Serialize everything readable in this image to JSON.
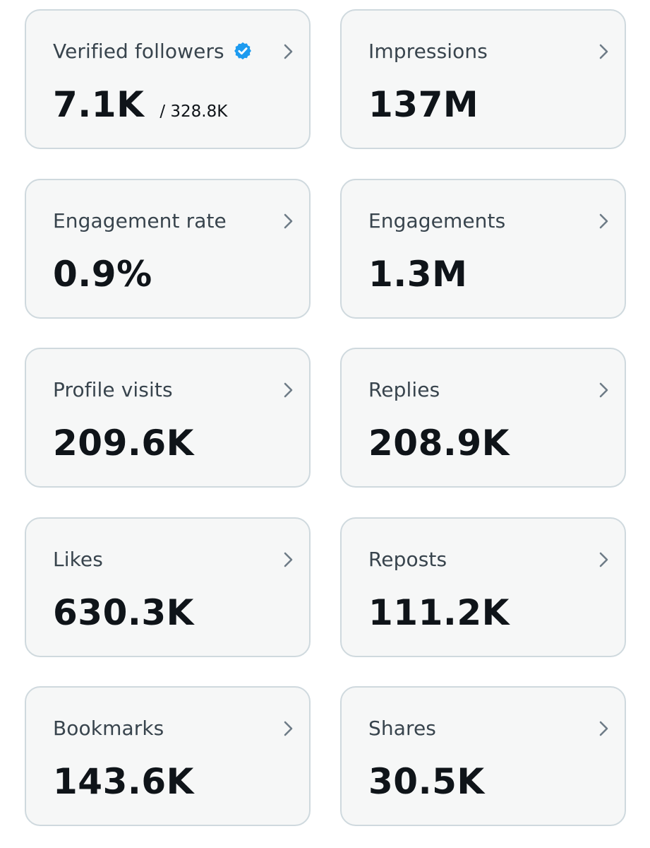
{
  "cards": [
    {
      "label": "Verified followers",
      "value": "7.1K",
      "sub": "/ 328.8K",
      "verified": true
    },
    {
      "label": "Impressions",
      "value": "137M"
    },
    {
      "label": "Engagement rate",
      "value": "0.9%"
    },
    {
      "label": "Engagements",
      "value": "1.3M"
    },
    {
      "label": "Profile visits",
      "value": "209.6K"
    },
    {
      "label": "Replies",
      "value": "208.9K"
    },
    {
      "label": "Likes",
      "value": "630.3K"
    },
    {
      "label": "Reposts",
      "value": "111.2K"
    },
    {
      "label": "Bookmarks",
      "value": "143.6K"
    },
    {
      "label": "Shares",
      "value": "30.5K"
    }
  ],
  "icons": {
    "chevron": "chevron-right-icon",
    "verified": "verified-badge-icon"
  },
  "colors": {
    "card_background": "#f6f7f7",
    "card_border": "#cfd9de",
    "label_text": "#38444d",
    "value_text": "#0f1419",
    "verified_blue": "#1d9bf0",
    "chevron": "#6e7c87"
  }
}
